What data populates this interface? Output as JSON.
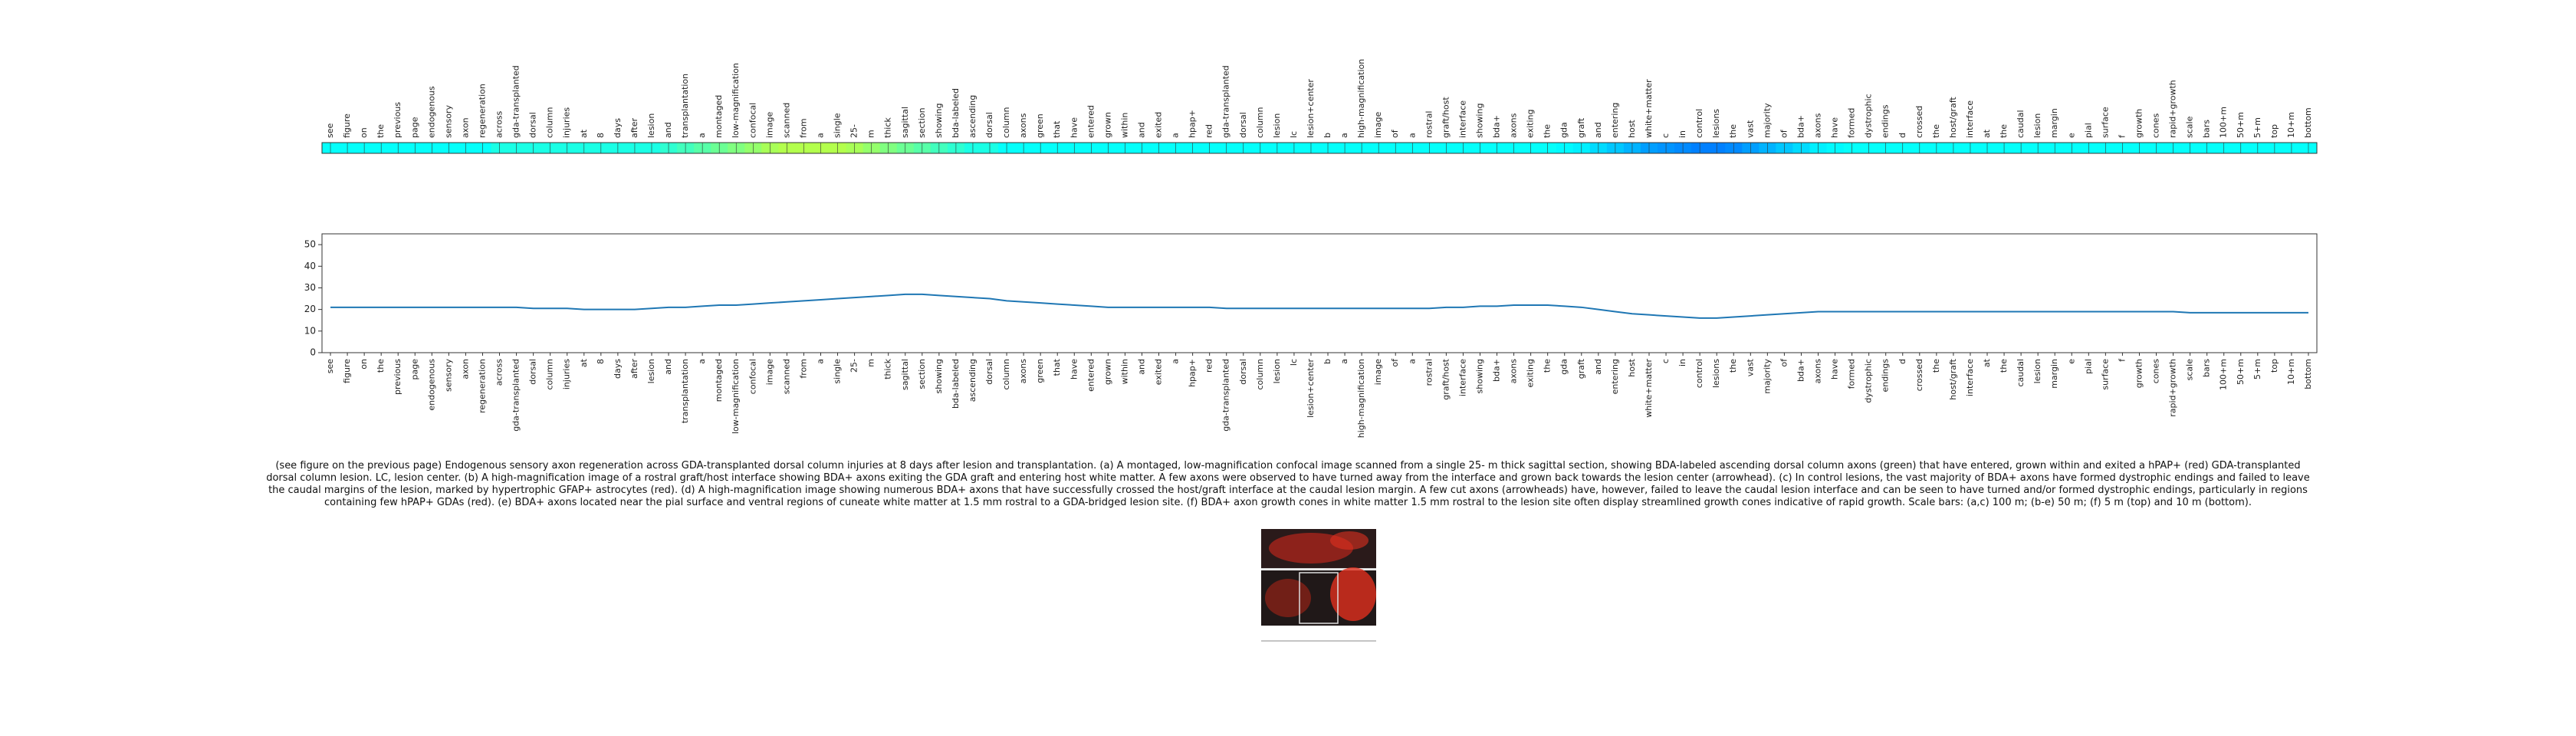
{
  "chart_data": [
    {
      "type": "heatmap",
      "colormap": "jet",
      "categories": [
        "see",
        "figure",
        "on",
        "the",
        "previous",
        "page",
        "endogenous",
        "sensory",
        "axon",
        "regeneration",
        "across",
        "gda-transplanted",
        "dorsal",
        "column",
        "injuries",
        "at",
        "8",
        "days",
        "after",
        "lesion",
        "and",
        "transplantation",
        "a",
        "montaged",
        "low-magnification",
        "confocal",
        "image",
        "scanned",
        "from",
        "a",
        "single",
        "25-",
        "m",
        "thick",
        "sagittal",
        "section",
        "showing",
        "bda-labeled",
        "ascending",
        "dorsal",
        "column",
        "axons",
        "green",
        "that",
        "have",
        "entered",
        "grown",
        "within",
        "and",
        "exited",
        "a",
        "hpap+",
        "red",
        "gda-transplanted",
        "dorsal",
        "column",
        "lesion",
        "lc",
        "lesion+center",
        "b",
        "a",
        "high-magnification",
        "image",
        "of",
        "a",
        "rostral",
        "graft/host",
        "interface",
        "showing",
        "bda+",
        "axons",
        "exiting",
        "the",
        "gda",
        "graft",
        "and",
        "entering",
        "host",
        "white+matter",
        "c",
        "in",
        "control",
        "lesions",
        "the",
        "vast",
        "majority",
        "of",
        "bda+",
        "axons",
        "have",
        "formed",
        "dystrophic",
        "endings",
        "d",
        "crossed",
        "the",
        "host/graft",
        "interface",
        "at",
        "the",
        "caudal",
        "lesion",
        "margin",
        "e",
        "pial",
        "surface",
        "f",
        "growth",
        "cones",
        "rapid+growth",
        "scale",
        "bars",
        "100+m",
        "50+m",
        "5+m",
        "top",
        "10+m",
        "bottom"
      ],
      "values": [
        0.38,
        0.38,
        0.38,
        0.38,
        0.38,
        0.38,
        0.38,
        0.38,
        0.38,
        0.38,
        0.4,
        0.4,
        0.4,
        0.4,
        0.4,
        0.4,
        0.4,
        0.4,
        0.4,
        0.4,
        0.42,
        0.44,
        0.46,
        0.48,
        0.5,
        0.52,
        0.54,
        0.55,
        0.55,
        0.55,
        0.55,
        0.54,
        0.52,
        0.5,
        0.48,
        0.46,
        0.44,
        0.42,
        0.4,
        0.4,
        0.38,
        0.38,
        0.38,
        0.38,
        0.38,
        0.38,
        0.38,
        0.38,
        0.38,
        0.38,
        0.38,
        0.38,
        0.38,
        0.38,
        0.38,
        0.38,
        0.38,
        0.38,
        0.38,
        0.38,
        0.38,
        0.38,
        0.38,
        0.38,
        0.38,
        0.38,
        0.38,
        0.38,
        0.38,
        0.38,
        0.38,
        0.38,
        0.38,
        0.37,
        0.36,
        0.34,
        0.32,
        0.3,
        0.28,
        0.27,
        0.26,
        0.25,
        0.25,
        0.26,
        0.28,
        0.3,
        0.32,
        0.34,
        0.36,
        0.37,
        0.38,
        0.38,
        0.38,
        0.38,
        0.38,
        0.38,
        0.38,
        0.38,
        0.38,
        0.38,
        0.38,
        0.38,
        0.38,
        0.38,
        0.38,
        0.38,
        0.38,
        0.38,
        0.38,
        0.38,
        0.38,
        0.38,
        0.38,
        0.38,
        0.38,
        0.38,
        0.38,
        0.38
      ]
    },
    {
      "type": "line",
      "color": "#1f77b4",
      "categories": [
        "see",
        "figure",
        "on",
        "the",
        "previous",
        "page",
        "endogenous",
        "sensory",
        "axon",
        "regeneration",
        "across",
        "gda-transplanted",
        "dorsal",
        "column",
        "injuries",
        "at",
        "8",
        "days",
        "after",
        "lesion",
        "and",
        "transplantation",
        "a",
        "montaged",
        "low-magnification",
        "confocal",
        "image",
        "scanned",
        "from",
        "a",
        "single",
        "25-",
        "m",
        "thick",
        "sagittal",
        "section",
        "showing",
        "bda-labeled",
        "ascending",
        "dorsal",
        "column",
        "axons",
        "green",
        "that",
        "have",
        "entered",
        "grown",
        "within",
        "and",
        "exited",
        "a",
        "hpap+",
        "red",
        "gda-transplanted",
        "dorsal",
        "column",
        "lesion",
        "lc",
        "lesion+center",
        "b",
        "a",
        "high-magnification",
        "image",
        "of",
        "a",
        "rostral",
        "graft/host",
        "interface",
        "showing",
        "bda+",
        "axons",
        "exiting",
        "the",
        "gda",
        "graft",
        "and",
        "entering",
        "host",
        "white+matter",
        "c",
        "in",
        "control",
        "lesions",
        "the",
        "vast",
        "majority",
        "of",
        "bda+",
        "axons",
        "have",
        "formed",
        "dystrophic",
        "endings",
        "d",
        "crossed",
        "the",
        "host/graft",
        "interface",
        "at",
        "the",
        "caudal",
        "lesion",
        "margin",
        "e",
        "pial",
        "surface",
        "f",
        "growth",
        "cones",
        "rapid+growth",
        "scale",
        "bars",
        "100+m",
        "50+m",
        "5+m",
        "top",
        "10+m",
        "bottom"
      ],
      "values": [
        21,
        21,
        21,
        21,
        21,
        21,
        21,
        21,
        21,
        21,
        21,
        21,
        20.5,
        20.5,
        20.5,
        20,
        20,
        20,
        20,
        20.5,
        21,
        21,
        21.5,
        22,
        22,
        22.5,
        23,
        23.5,
        24,
        24.5,
        25,
        25.5,
        26,
        26.5,
        27,
        27,
        26.5,
        26,
        25.5,
        25,
        24,
        23.5,
        23,
        22.5,
        22,
        21.5,
        21,
        21,
        21,
        21,
        21,
        21,
        21,
        20.5,
        20.5,
        20.5,
        20.5,
        20.5,
        20.5,
        20.5,
        20.5,
        20.5,
        20.5,
        20.5,
        20.5,
        20.5,
        21,
        21,
        21.5,
        21.5,
        22,
        22,
        22,
        21.5,
        21,
        20,
        19,
        18,
        17.5,
        17,
        16.5,
        16,
        16,
        16.5,
        17,
        17.5,
        18,
        18.5,
        19,
        19,
        19,
        19,
        19,
        19,
        19,
        19,
        19,
        19,
        19,
        19,
        19,
        19,
        19,
        19,
        19,
        19,
        19,
        19,
        19,
        19,
        18.5,
        18.5,
        18.5,
        18.5,
        18.5,
        18.5,
        18.5,
        18.5
      ],
      "ylim": [
        0,
        55
      ],
      "yticks": [
        0,
        10,
        20,
        30,
        40,
        50
      ]
    }
  ],
  "caption": "(see figure on the previous page) Endogenous sensory axon regeneration across GDA-transplanted dorsal column injuries at 8 days after lesion and transplantation. (a) A montaged, low-magnification confocal image scanned from a single 25- m thick sagittal section, showing BDA-labeled ascending dorsal column axons (green) that have entered, grown within and exited a hPAP+ (red) GDA-transplanted dorsal column lesion. LC, lesion center. (b) A high-magnification image of a rostral graft/host interface showing BDA+ axons exiting the GDA graft and entering host white matter. A few axons were observed to have turned away from the interface and grown back towards the lesion center (arrowhead). (c) In control lesions, the vast majority of BDA+ axons have formed dystrophic endings and failed to leave the caudal margins of the lesion, marked by hypertrophic GFAP+ astrocytes (red). (d) A high-magnification image showing numerous BDA+ axons that have successfully crossed the host/graft interface at the caudal lesion margin. A few cut axons (arrowheads) have, however, failed to leave the caudal lesion interface and can be seen to have turned and/or formed dystrophic endings, particularly in regions containing few hPAP+ GDAs (red). (e) BDA+ axons located near the pial surface and ventral regions of cuneate white matter at 1.5 mm rostral to a GDA-bridged lesion site. (f) BDA+ axon growth cones in white matter 1.5 mm rostral to the lesion site often display streamlined growth cones indicative of rapid growth. Scale bars: (a,c) 100 m; (b-e) 50 m; (f) 5 m (top) and 10 m (bottom)."
}
